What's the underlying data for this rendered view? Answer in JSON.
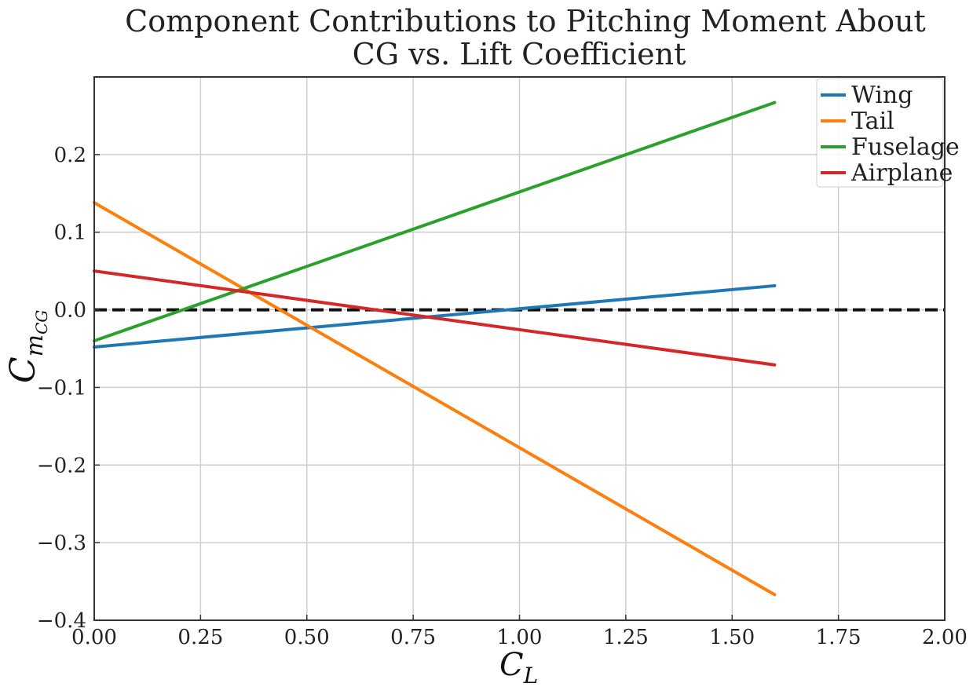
{
  "chart_data": {
    "type": "line",
    "title_lines": [
      "Component Contributions to Pitching Moment About",
      "CG vs. Lift Coefficient"
    ],
    "xlabel": {
      "main": "C",
      "sub": "L"
    },
    "ylabel": {
      "main": "C",
      "sub": "m",
      "subsub": "CG"
    },
    "xlim": [
      0,
      2
    ],
    "ylim": [
      -0.4,
      0.3
    ],
    "xticks": [
      0,
      0.25,
      0.5,
      0.75,
      1.0,
      1.25,
      1.5,
      1.75,
      2.0
    ],
    "xtick_labels": [
      "0.00",
      "0.25",
      "0.50",
      "0.75",
      "1.00",
      "1.25",
      "1.50",
      "1.75",
      "2.00"
    ],
    "yticks": [
      -0.4,
      -0.3,
      -0.2,
      -0.1,
      0.0,
      0.1,
      0.2
    ],
    "ytick_labels": [
      "−0.4",
      "−0.3",
      "−0.2",
      "−0.1",
      "0.0",
      "0.1",
      "0.2"
    ],
    "grid": true,
    "legend_position": "top-right",
    "reference_line": {
      "y": 0.0,
      "style": "dashed",
      "color": "#111111"
    },
    "series": [
      {
        "name": "Wing",
        "color": "#1f77b4",
        "x": [
          0.0,
          1.6
        ],
        "y": [
          -0.048,
          0.031
        ]
      },
      {
        "name": "Tail",
        "color": "#ff7f0e",
        "x": [
          0.0,
          1.6
        ],
        "y": [
          0.138,
          -0.367
        ]
      },
      {
        "name": "Fuselage",
        "color": "#2ca02c",
        "x": [
          0.0,
          1.6
        ],
        "y": [
          -0.04,
          0.267
        ]
      },
      {
        "name": "Airplane",
        "color": "#d62728",
        "x": [
          0.0,
          1.6
        ],
        "y": [
          0.05,
          -0.071
        ]
      }
    ]
  }
}
